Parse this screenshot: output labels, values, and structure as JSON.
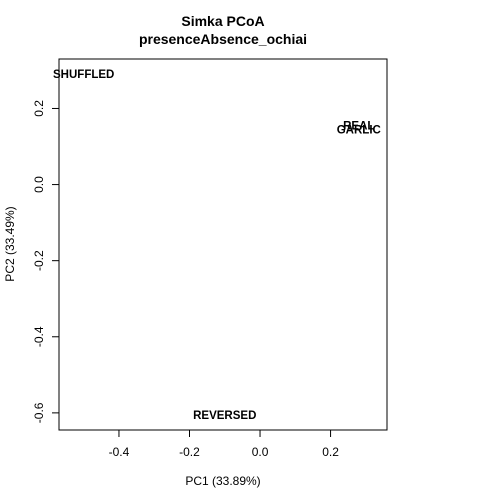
{
  "chart_data": {
    "type": "scatter",
    "title": "Simka PCoA",
    "subtitle": "presenceAbsence_ochiai",
    "xlabel": "PC1 (33.89%)",
    "ylabel": "PC2 (33.49%)",
    "xlim": [
      -0.57,
      0.36
    ],
    "ylim": [
      -0.645,
      0.33
    ],
    "xticks": [
      -0.4,
      -0.2,
      0.0,
      0.2
    ],
    "xtick_labels": [
      "-0.4",
      "-0.2",
      "0.0",
      "0.2"
    ],
    "yticks": [
      -0.6,
      -0.4,
      -0.2,
      0.0,
      0.2
    ],
    "ytick_labels": [
      "-0.6",
      "-0.4",
      "-0.2",
      "0.0",
      "0.2"
    ],
    "grid": false,
    "legend": "none",
    "points": [
      {
        "label": "SHUFFLED",
        "x": -0.5,
        "y": 0.29
      },
      {
        "label": "REAL",
        "x": 0.28,
        "y": 0.155
      },
      {
        "label": "GARLIC",
        "x": 0.28,
        "y": 0.145
      },
      {
        "label": "REVERSED",
        "x": -0.1,
        "y": -0.605
      }
    ]
  }
}
